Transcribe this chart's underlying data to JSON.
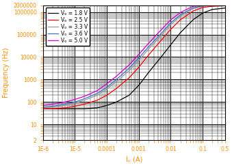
{
  "title": "",
  "xlabel": "Iₒ (A)",
  "ylabel": "Frequency (Hz)",
  "xlim": [
    1e-06,
    0.5
  ],
  "ylim": [
    2,
    2000000
  ],
  "label_color": "#FF8C00",
  "tick_color": "#FF8C00",
  "series": [
    {
      "label": "Vₒ = 1.8 V",
      "color": "black",
      "x": [
        1e-06,
        2e-06,
        5e-06,
        1e-05,
        2e-05,
        5e-05,
        0.0001,
        0.0002,
        0.0005,
        0.001,
        0.002,
        0.005,
        0.01,
        0.02,
        0.05,
        0.1,
        0.2,
        0.5
      ],
      "y": [
        50,
        50,
        50,
        50,
        50,
        55,
        70,
        100,
        200,
        550,
        2000,
        10000,
        35000,
        120000,
        450000,
        900000,
        1300000,
        1500000
      ]
    },
    {
      "label": "Vₒ = 2.5 V",
      "color": "red",
      "x": [
        1e-06,
        2e-06,
        5e-06,
        1e-05,
        2e-05,
        5e-05,
        0.0001,
        0.0002,
        0.0005,
        0.001,
        0.002,
        0.005,
        0.01,
        0.02,
        0.05,
        0.1,
        0.2,
        0.5
      ],
      "y": [
        50,
        50,
        55,
        65,
        80,
        120,
        200,
        400,
        1200,
        3500,
        12000,
        55000,
        170000,
        450000,
        1100000,
        1600000,
        1800000,
        1900000
      ]
    },
    {
      "label": "Vₒ = 3.3 V",
      "color": "#999999",
      "x": [
        1e-06,
        2e-06,
        5e-06,
        1e-05,
        2e-05,
        5e-05,
        0.0001,
        0.0002,
        0.0005,
        0.001,
        0.002,
        0.005,
        0.01,
        0.02,
        0.05,
        0.1,
        0.2,
        0.5
      ],
      "y": [
        55,
        60,
        70,
        90,
        120,
        200,
        380,
        800,
        2500,
        7000,
        22000,
        90000,
        270000,
        650000,
        1400000,
        1800000,
        2000000,
        2000000
      ]
    },
    {
      "label": "Vₒ = 3.6 V",
      "color": "#4472C4",
      "x": [
        1e-06,
        2e-06,
        5e-06,
        1e-05,
        2e-05,
        5e-05,
        0.0001,
        0.0002,
        0.0005,
        0.001,
        0.002,
        0.005,
        0.01,
        0.02,
        0.05,
        0.1,
        0.2,
        0.5
      ],
      "y": [
        60,
        65,
        80,
        100,
        140,
        240,
        450,
        1000,
        3200,
        9000,
        28000,
        110000,
        330000,
        750000,
        1550000,
        1900000,
        2000000,
        2000000
      ]
    },
    {
      "label": "Vₒ = 5.0 V",
      "color": "#CC00CC",
      "x": [
        1e-06,
        2e-06,
        5e-06,
        1e-05,
        2e-05,
        5e-05,
        0.0001,
        0.0002,
        0.0005,
        0.001,
        0.002,
        0.005,
        0.01,
        0.02,
        0.05,
        0.1,
        0.2,
        0.5
      ],
      "y": [
        70,
        80,
        100,
        130,
        180,
        320,
        650,
        1400,
        4500,
        13000,
        40000,
        160000,
        450000,
        950000,
        1800000,
        2000000,
        2000000,
        2000000
      ]
    }
  ],
  "yticks": [
    2,
    10,
    100,
    1000,
    10000,
    100000,
    1000000,
    2000000
  ],
  "ytick_labels": [
    "2",
    "10",
    "100",
    "1000",
    "10000",
    "100000",
    "1000000",
    "2000000"
  ],
  "xticks": [
    1e-06,
    1e-05,
    0.0001,
    0.001,
    0.01,
    0.1,
    0.5
  ],
  "xtick_labels": [
    "1E-6",
    "1E-5",
    "0.0001",
    "0.001",
    "0.01",
    "0.1",
    "0.5"
  ],
  "legend_fontsize": 5.5,
  "axis_fontsize": 7,
  "tick_fontsize": 5.5,
  "linewidth": 0.9,
  "figure_bg": "white",
  "plot_bg": "white"
}
